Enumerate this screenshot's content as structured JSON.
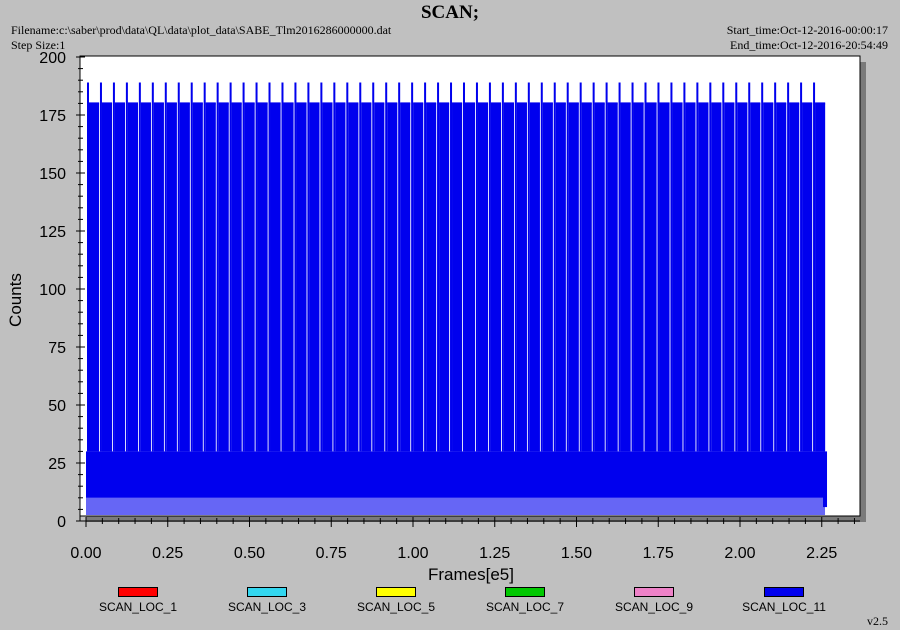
{
  "header": {
    "title": "SCAN;",
    "filename": "Filename:c:\\saber\\prod\\data\\QL\\data\\plot_data\\SABE_Tlm2016286000000.dat",
    "step_size": "Step Size:1",
    "start_time": "Start_time:Oct-12-2016-00:00:17",
    "end_time": "End_time:Oct-12-2016-20:54:49"
  },
  "footer": {
    "version": "v2.5"
  },
  "chart_data": {
    "type": "line",
    "title": "SCAN;",
    "xlabel": "Frames[e5]",
    "ylabel": "Counts",
    "xlim": [
      0,
      2.4
    ],
    "ylim": [
      0,
      200
    ],
    "xticks": [
      "0.00",
      "0.25",
      "0.50",
      "0.75",
      "1.00",
      "1.25",
      "1.50",
      "1.75",
      "2.00",
      "2.25"
    ],
    "yticks": [
      "0",
      "25",
      "50",
      "75",
      "100",
      "125",
      "150",
      "175",
      "200"
    ],
    "grid": false,
    "legend_position": "bottom",
    "series": [
      {
        "name": "SCAN_LOC_1",
        "color": "#ff0000"
      },
      {
        "name": "SCAN_LOC_3",
        "color": "#33d7f0"
      },
      {
        "name": "SCAN_LOC_5",
        "color": "#ffff00"
      },
      {
        "name": "SCAN_LOC_7",
        "color": "#00c800"
      },
      {
        "name": "SCAN_LOC_9",
        "color": "#ee82c8"
      },
      {
        "name": "SCAN_LOC_11",
        "color": "#0000ee",
        "x_range": [
          0.0,
          2.26
        ],
        "band": [
          10,
          30
        ],
        "levels": [
          180,
          189
        ],
        "approx_cycles": 57
      }
    ]
  }
}
